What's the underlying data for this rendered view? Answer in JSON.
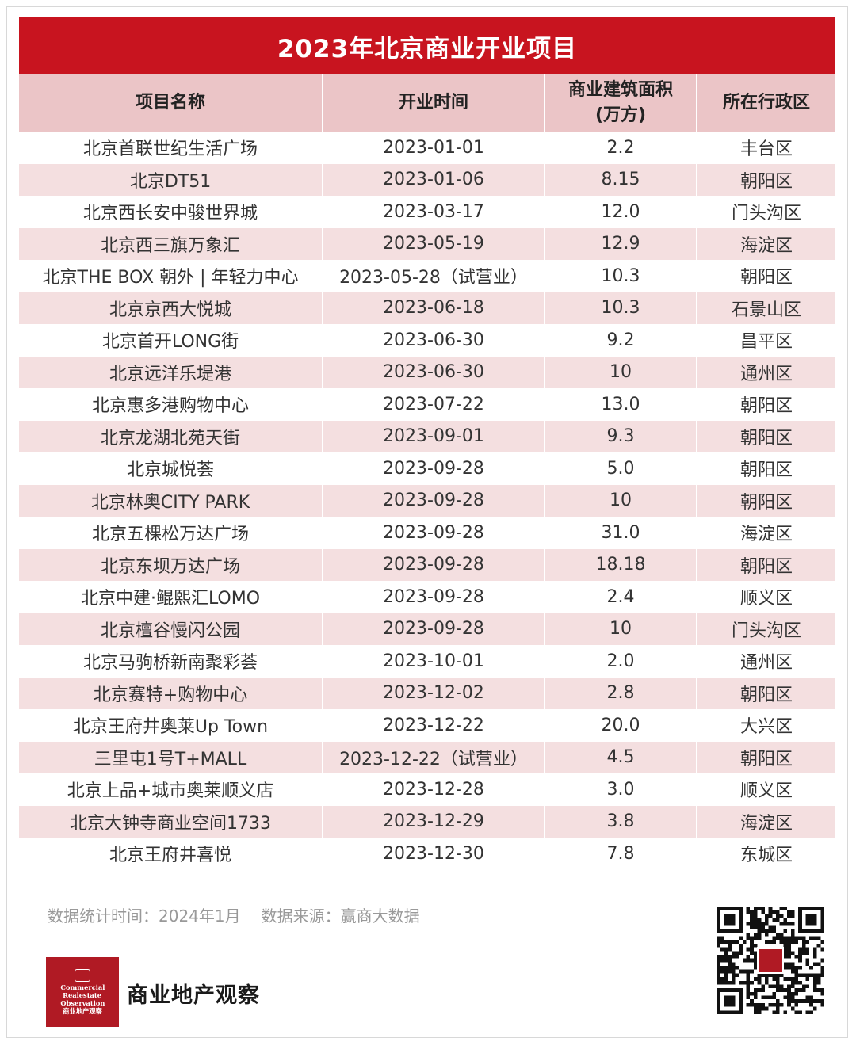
{
  "title": "2023年北京商业开业项目",
  "table": {
    "headers": [
      "项目名称",
      "开业时间",
      "商业建筑面积\n(万方)",
      "所在行政区"
    ],
    "rows": [
      [
        "北京首联世纪生活广场",
        "2023-01-01",
        "2.2",
        "丰台区"
      ],
      [
        "北京DT51",
        "2023-01-06",
        "8.15",
        "朝阳区"
      ],
      [
        "北京西长安中骏世界城",
        "2023-03-17",
        "12.0",
        "门头沟区"
      ],
      [
        "北京西三旗万象汇",
        "2023-05-19",
        "12.9",
        "海淀区"
      ],
      [
        "北京THE BOX 朝外 | 年轻力中心",
        "2023-05-28（试营业）",
        "10.3",
        "朝阳区"
      ],
      [
        "北京京西大悦城",
        "2023-06-18",
        "10.3",
        "石景山区"
      ],
      [
        "北京首开LONG街",
        "2023-06-30",
        "9.2",
        "昌平区"
      ],
      [
        "北京远洋乐堤港",
        "2023-06-30",
        "10",
        "通州区"
      ],
      [
        "北京惠多港购物中心",
        "2023-07-22",
        "13.0",
        "朝阳区"
      ],
      [
        "北京龙湖北苑天街",
        "2023-09-01",
        "9.3",
        "朝阳区"
      ],
      [
        "北京城悦荟",
        "2023-09-28",
        "5.0",
        "朝阳区"
      ],
      [
        "北京林奥CITY PARK",
        "2023-09-28",
        "10",
        "朝阳区"
      ],
      [
        "北京五棵松万达广场",
        "2023-09-28",
        "31.0",
        "海淀区"
      ],
      [
        "北京东坝万达广场",
        "2023-09-28",
        "18.18",
        "朝阳区"
      ],
      [
        "北京中建·鲲熙汇LOMO",
        "2023-09-28",
        "2.4",
        "顺义区"
      ],
      [
        "北京檀谷慢闪公园",
        "2023-09-28",
        "10",
        "门头沟区"
      ],
      [
        "北京马驹桥新南聚彩荟",
        "2023-10-01",
        "2.0",
        "通州区"
      ],
      [
        "北京赛特+购物中心",
        "2023-12-02",
        "2.8",
        "朝阳区"
      ],
      [
        "北京王府井奥莱Up Town",
        "2023-12-22",
        "20.0",
        "大兴区"
      ],
      [
        "三里屯1号T+MALL",
        "2023-12-22（试营业）",
        "4.5",
        "朝阳区"
      ],
      [
        "北京上品+城市奥莱顺义店",
        "2023-12-28",
        "3.0",
        "顺义区"
      ],
      [
        "北京大钟寺商业空间1733",
        "2023-12-29",
        "3.8",
        "海淀区"
      ],
      [
        "北京王府井喜悦",
        "2023-12-30",
        "7.8",
        "东城区"
      ]
    ]
  },
  "footer": {
    "stat_time": "数据统计时间：2024年1月",
    "source": "数据来源：赢商大数据"
  },
  "brand": {
    "logo_lines": [
      "Commercial",
      "Realestate",
      "Observation",
      "商业地产观察"
    ],
    "name": "商业地产观察"
  },
  "colors": {
    "title_bg": "#c8141f",
    "header_bg": "#ebc5c7",
    "stripe_bg": "#f4dfe0",
    "logo_bg": "#b01a24"
  },
  "icons": [
    "logo-icon",
    "qr-code-icon"
  ]
}
